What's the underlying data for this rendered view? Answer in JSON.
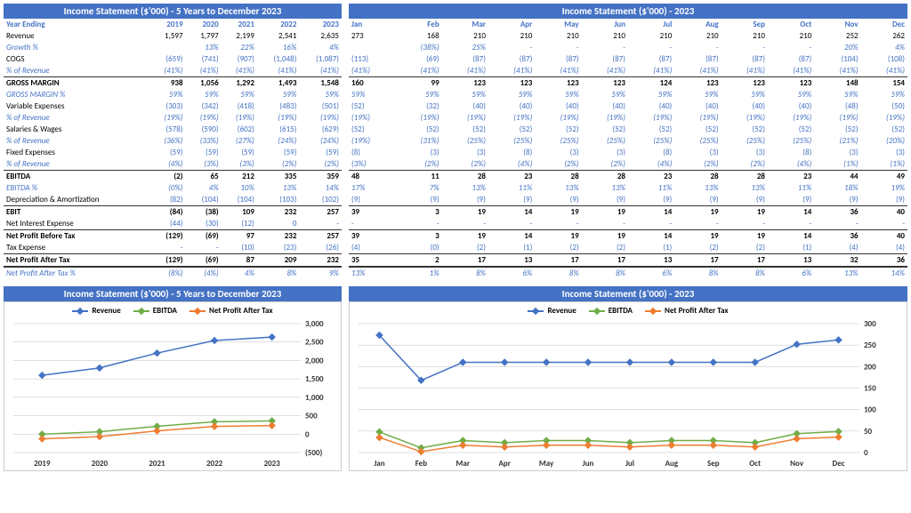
{
  "title_left": "Income Statement ($'000) - 5 Years to December 2023",
  "title_right": "Income Statement ($'000) - 2023",
  "years": [
    "2019",
    "2020",
    "2021",
    "2022",
    "2023"
  ],
  "months": [
    "Jan",
    "Feb",
    "Mar",
    "Apr",
    "May",
    "Jun",
    "Jul",
    "Aug",
    "Sep",
    "Oct",
    "Nov",
    "Dec"
  ],
  "row_label_year": "Year Ending",
  "rows_left": [
    {
      "l": "Revenue",
      "v": [
        "1,597",
        "1,797",
        "2,199",
        "2,541",
        "2,635"
      ]
    },
    {
      "l": "Growth %",
      "v": [
        "",
        "13%",
        "22%",
        "16%",
        "4%"
      ],
      "i": 1
    },
    {
      "l": "COGS",
      "v": [
        "(659)",
        "(741)",
        "(907)",
        "(1,048)",
        "(1,087)"
      ],
      "neg": 1
    },
    {
      "l": "% of Revenue",
      "v": [
        "(41%)",
        "(41%)",
        "(41%)",
        "(41%)",
        "(41%)"
      ],
      "i": 1
    },
    {
      "l": "GROSS MARGIN",
      "v": [
        "938",
        "1,056",
        "1,292",
        "1,493",
        "1,548"
      ],
      "b": 1
    },
    {
      "l": "GROSS MARGIN %",
      "v": [
        "59%",
        "59%",
        "59%",
        "59%",
        "59%"
      ],
      "i": 1
    },
    {
      "l": "Variable Expenses",
      "v": [
        "(303)",
        "(342)",
        "(418)",
        "(483)",
        "(501)"
      ],
      "neg": 1
    },
    {
      "l": "% of Revenue",
      "v": [
        "(19%)",
        "(19%)",
        "(19%)",
        "(19%)",
        "(19%)"
      ],
      "i": 1
    },
    {
      "l": "Salaries & Wages",
      "v": [
        "(578)",
        "(590)",
        "(602)",
        "(615)",
        "(629)"
      ],
      "neg": 1
    },
    {
      "l": "% of Revenue",
      "v": [
        "(36%)",
        "(33%)",
        "(27%)",
        "(24%)",
        "(24%)"
      ],
      "i": 1
    },
    {
      "l": "Fixed Expenses",
      "v": [
        "(59)",
        "(59)",
        "(59)",
        "(59)",
        "(59)"
      ],
      "neg": 1
    },
    {
      "l": "% of Revenue",
      "v": [
        "(4%)",
        "(3%)",
        "(3%)",
        "(2%)",
        "(2%)"
      ],
      "i": 1
    },
    {
      "l": "EBITDA",
      "v": [
        "(2)",
        "65",
        "212",
        "335",
        "359"
      ],
      "b": 1
    },
    {
      "l": "EBITDA %",
      "v": [
        "(0%)",
        "4%",
        "10%",
        "13%",
        "14%"
      ],
      "i": 1
    },
    {
      "l": "Depreciation & Amortization",
      "v": [
        "(82)",
        "(104)",
        "(104)",
        "(103)",
        "(102)"
      ],
      "neg": 1
    },
    {
      "l": "EBIT",
      "v": [
        "(84)",
        "(38)",
        "109",
        "232",
        "257"
      ],
      "b": 1
    },
    {
      "l": "Net Interest Expense",
      "v": [
        "(44)",
        "(30)",
        "(12)",
        "0",
        "-"
      ],
      "neg": 1
    },
    {
      "l": "Net Profit Before Tax",
      "v": [
        "(129)",
        "(69)",
        "97",
        "232",
        "257"
      ],
      "b": 1
    },
    {
      "l": "Tax Expense",
      "v": [
        "-",
        "-",
        "(10)",
        "(23)",
        "(26)"
      ],
      "neg": 1
    },
    {
      "l": "Net Profit After Tax",
      "v": [
        "(129)",
        "(69)",
        "87",
        "209",
        "232"
      ],
      "d": 1
    },
    {
      "l": "Net Profit After Tax %",
      "v": [
        "(8%)",
        "(4%)",
        "4%",
        "8%",
        "9%"
      ],
      "i": 1
    }
  ],
  "rows_right": [
    {
      "l": "",
      "v": [
        "273",
        "168",
        "210",
        "210",
        "210",
        "210",
        "210",
        "210",
        "210",
        "210",
        "252",
        "262"
      ]
    },
    {
      "l": "",
      "v": [
        "",
        "(38%)",
        "25%",
        "-",
        "-",
        "-",
        "-",
        "-",
        "-",
        "-",
        "20%",
        "4%"
      ],
      "i": 1
    },
    {
      "l": "",
      "v": [
        "(113)",
        "(69)",
        "(87)",
        "(87)",
        "(87)",
        "(87)",
        "(87)",
        "(87)",
        "(87)",
        "(87)",
        "(104)",
        "(108)"
      ],
      "neg": 1
    },
    {
      "l": "",
      "v": [
        "(41%)",
        "(41%)",
        "(41%)",
        "(41%)",
        "(41%)",
        "(41%)",
        "(41%)",
        "(41%)",
        "(41%)",
        "(41%)",
        "(41%)",
        "(41%)"
      ],
      "i": 1
    },
    {
      "l": "",
      "v": [
        "160",
        "99",
        "123",
        "123",
        "123",
        "123",
        "124",
        "123",
        "123",
        "123",
        "148",
        "154"
      ],
      "b": 1
    },
    {
      "l": "",
      "v": [
        "59%",
        "59%",
        "59%",
        "59%",
        "59%",
        "59%",
        "59%",
        "59%",
        "59%",
        "59%",
        "59%",
        "59%"
      ],
      "i": 1
    },
    {
      "l": "",
      "v": [
        "(52)",
        "(32)",
        "(40)",
        "(40)",
        "(40)",
        "(40)",
        "(40)",
        "(40)",
        "(40)",
        "(40)",
        "(48)",
        "(50)"
      ],
      "neg": 1
    },
    {
      "l": "",
      "v": [
        "(19%)",
        "(19%)",
        "(19%)",
        "(19%)",
        "(19%)",
        "(19%)",
        "(19%)",
        "(19%)",
        "(19%)",
        "(19%)",
        "(19%)",
        "(19%)"
      ],
      "i": 1
    },
    {
      "l": "",
      "v": [
        "(52)",
        "(52)",
        "(52)",
        "(52)",
        "(52)",
        "(52)",
        "(52)",
        "(52)",
        "(52)",
        "(52)",
        "(52)",
        "(52)"
      ],
      "neg": 1
    },
    {
      "l": "",
      "v": [
        "(19%)",
        "(31%)",
        "(25%)",
        "(25%)",
        "(25%)",
        "(25%)",
        "(25%)",
        "(25%)",
        "(25%)",
        "(25%)",
        "(21%)",
        "(20%)"
      ],
      "i": 1
    },
    {
      "l": "",
      "v": [
        "(8)",
        "(3)",
        "(3)",
        "(8)",
        "(3)",
        "(3)",
        "(8)",
        "(3)",
        "(3)",
        "(8)",
        "(3)",
        "(3)"
      ],
      "neg": 1
    },
    {
      "l": "",
      "v": [
        "(3%)",
        "(2%)",
        "(2%)",
        "(4%)",
        "(2%)",
        "(2%)",
        "(4%)",
        "(2%)",
        "(2%)",
        "(4%)",
        "(1%)",
        "(1%)"
      ],
      "i": 1
    },
    {
      "l": "",
      "v": [
        "48",
        "11",
        "28",
        "23",
        "28",
        "28",
        "23",
        "28",
        "28",
        "23",
        "44",
        "49"
      ],
      "b": 1
    },
    {
      "l": "",
      "v": [
        "17%",
        "7%",
        "13%",
        "11%",
        "13%",
        "13%",
        "11%",
        "13%",
        "13%",
        "11%",
        "18%",
        "19%"
      ],
      "i": 1
    },
    {
      "l": "",
      "v": [
        "(9)",
        "(9)",
        "(9)",
        "(9)",
        "(9)",
        "(9)",
        "(9)",
        "(9)",
        "(9)",
        "(9)",
        "(9)",
        "(9)"
      ],
      "neg": 1
    },
    {
      "l": "",
      "v": [
        "39",
        "3",
        "19",
        "14",
        "19",
        "19",
        "14",
        "19",
        "19",
        "14",
        "36",
        "40"
      ],
      "b": 1
    },
    {
      "l": "",
      "v": [
        "-",
        "-",
        "-",
        "-",
        "-",
        "-",
        "-",
        "-",
        "-",
        "-",
        "-",
        "-"
      ],
      "neg": 1
    },
    {
      "l": "",
      "v": [
        "39",
        "3",
        "19",
        "14",
        "19",
        "19",
        "14",
        "19",
        "19",
        "14",
        "36",
        "40"
      ],
      "b": 1
    },
    {
      "l": "",
      "v": [
        "(4)",
        "(0)",
        "(2)",
        "(1)",
        "(2)",
        "(2)",
        "(1)",
        "(2)",
        "(2)",
        "(1)",
        "(4)",
        "(4)"
      ],
      "neg": 1
    },
    {
      "l": "",
      "v": [
        "35",
        "2",
        "17",
        "13",
        "17",
        "17",
        "13",
        "17",
        "17",
        "13",
        "32",
        "36"
      ],
      "d": 1
    },
    {
      "l": "",
      "v": [
        "13%",
        "1%",
        "8%",
        "6%",
        "8%",
        "8%",
        "6%",
        "8%",
        "8%",
        "6%",
        "13%",
        "14%"
      ],
      "i": 1
    }
  ],
  "legend_labels": [
    "Revenue",
    "EBITDA",
    "Net Profit After Tax"
  ],
  "chart_left": {
    "x": [
      "2019",
      "2020",
      "2021",
      "2022",
      "2023"
    ],
    "ymin": -500,
    "ymax": 3000,
    "ystep": 500,
    "rev": [
      1597,
      1797,
      2199,
      2541,
      2635
    ],
    "ebi": [
      -2,
      65,
      212,
      335,
      359
    ],
    "npt": [
      -129,
      -69,
      87,
      209,
      232
    ],
    "colors": {
      "rev": "#4472c4",
      "ebi": "#70ad47",
      "npt": "#ed7d31",
      "grid": "#bfbfbf"
    }
  },
  "chart_right": {
    "x": [
      "Jan",
      "Feb",
      "Mar",
      "Apr",
      "May",
      "Jun",
      "Jul",
      "Aug",
      "Sep",
      "Oct",
      "Nov",
      "Dec"
    ],
    "ymin": 0,
    "ymax": 300,
    "ystep": 50,
    "rev": [
      273,
      168,
      210,
      210,
      210,
      210,
      210,
      210,
      210,
      210,
      252,
      262
    ],
    "ebi": [
      48,
      11,
      28,
      23,
      28,
      28,
      23,
      28,
      28,
      23,
      44,
      49
    ],
    "npt": [
      35,
      2,
      17,
      13,
      17,
      17,
      13,
      17,
      17,
      13,
      32,
      36
    ],
    "colors": {
      "rev": "#4472c4",
      "ebi": "#70ad47",
      "npt": "#ed7d31",
      "grid": "#bfbfbf"
    }
  }
}
